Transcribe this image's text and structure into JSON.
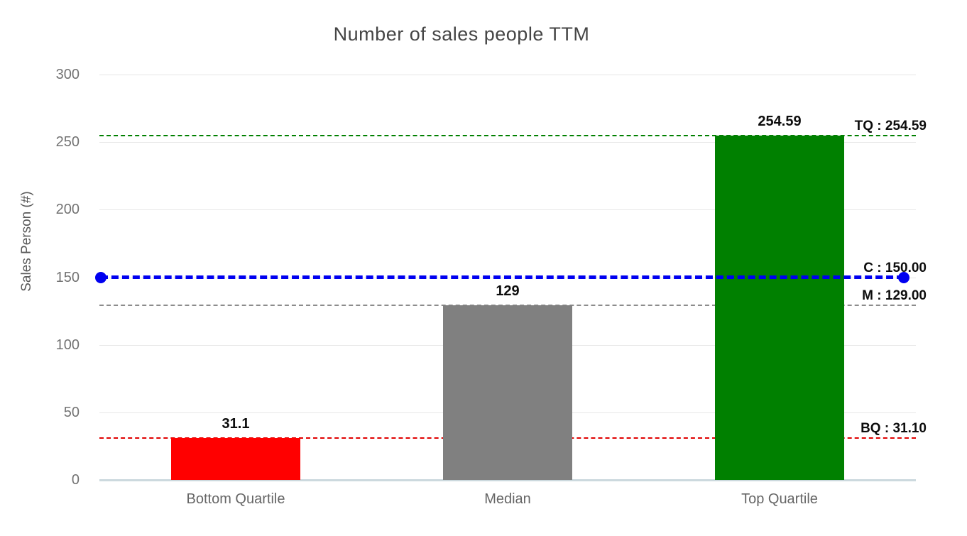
{
  "chart_data": {
    "type": "bar",
    "title": "Number of sales people TTM",
    "ylabel": "Sales Person (#)",
    "xlabel": "",
    "categories": [
      "Bottom Quartile",
      "Median",
      "Top Quartile"
    ],
    "values": [
      31.1,
      129,
      254.59
    ],
    "value_labels": [
      "31.1",
      "129",
      "254.59"
    ],
    "bar_colors": [
      "#ff0000",
      "#808080",
      "#008000"
    ],
    "ylim": [
      0,
      300
    ],
    "yticks": [
      0,
      50,
      100,
      150,
      200,
      250,
      300
    ],
    "grid": "horizontal",
    "legend": "none",
    "background_color": "#ffffff",
    "axis_line_color": "#ccd9de",
    "gridline_color": "#e7e7e7",
    "reference_lines": [
      {
        "id": "tq",
        "label": "TQ : 254.59",
        "value": 254.59,
        "color": "#008000",
        "style": "dashed",
        "thickness": "thin",
        "layer": "behind-bars",
        "end_markers": "none"
      },
      {
        "id": "c",
        "label": "C : 150.00",
        "value": 150,
        "color": "#0000f0",
        "style": "dashed",
        "thickness": "thick",
        "layer": "in-front-of-bars",
        "end_markers": "circle-both-ends"
      },
      {
        "id": "m",
        "label": "M : 129.00",
        "value": 129,
        "color": "#8c8c8c",
        "style": "dashed",
        "thickness": "thin",
        "layer": "behind-bars",
        "end_markers": "none"
      },
      {
        "id": "bq",
        "label": "BQ : 31.10",
        "value": 31.1,
        "color": "#e00000",
        "style": "dashed",
        "thickness": "thin",
        "layer": "behind-bars",
        "end_markers": "none"
      }
    ]
  }
}
